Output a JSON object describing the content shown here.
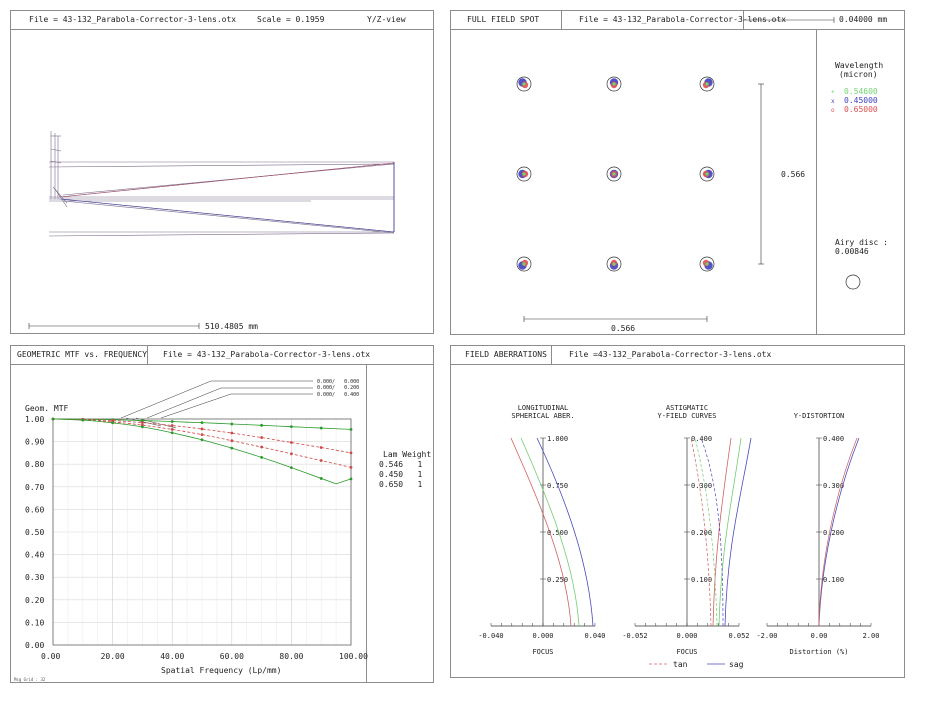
{
  "layout_panel": {
    "file": "File = 43-132_Parabola-Corrector-3-lens.otx",
    "scale": "Scale = 0.1959",
    "view": "Y/Z-view",
    "scalebar": "510.4805 mm"
  },
  "spot_panel": {
    "title": "FULL FIELD SPOT",
    "file": "File = 43-132_Parabola-Corrector-3-lens.otx",
    "scale": "0.04000 mm",
    "wavelength_title": "Wavelength",
    "wavelength_unit": "(micron)",
    "wavelengths": [
      {
        "value": "0.54600",
        "color": "#6fd66f"
      },
      {
        "value": "0.45000",
        "color": "#4040c0"
      },
      {
        "value": "0.65000",
        "color": "#e05050"
      }
    ],
    "field_size_v": "0.566",
    "field_size_h": "0.566",
    "airy_label": "Airy disc :",
    "airy_value": "0.00846"
  },
  "mtf_panel": {
    "title": "GEOMETRIC MTF vs. FREQUENCY",
    "file": "File = 43-132_Parabola-Corrector-3-lens.otx",
    "legend_header": "Lam Weight",
    "legend_rows": [
      "0.546   1",
      "0.450   1",
      "0.650   1"
    ],
    "field_labels": [
      "0.000/   0.000",
      "0.000/   0.200",
      "0.000/   0.400"
    ],
    "footer": "Msg Grid : 32",
    "colors": {
      "green": "#2a9a2a",
      "red": "#d04848"
    }
  },
  "aberr_panel": {
    "title": "FIELD ABERRATIONS",
    "file": "File =43-132_Parabola-Corrector-3-lens.otx",
    "legend_tan": "tan",
    "legend_sag": "sag",
    "plots": [
      {
        "title1": "LONGITUDINAL",
        "title2": "SPHERICAL ABER.",
        "ticks": [
          "1.000",
          "0.750",
          "0.500",
          "0.250"
        ],
        "xticks": [
          "-0.040",
          "0.000",
          "0.040"
        ],
        "xlabel": "FOCUS"
      },
      {
        "title1": "ASTIGMATIC",
        "title2": "Y-FIELD CURVES",
        "ticks": [
          "0.400",
          "0.300",
          "0.200",
          "0.100"
        ],
        "xticks": [
          "-0.052",
          "0.000",
          "0.052"
        ],
        "xlabel": "FOCUS"
      },
      {
        "title1": "",
        "title2": "Y-DISTORTION",
        "ticks": [
          "0.400",
          "0.300",
          "0.200",
          "0.100"
        ],
        "xticks": [
          "-2.00",
          "0.00",
          "2.00"
        ],
        "xlabel": "Distortion (%)"
      }
    ]
  },
  "chart_data": {
    "type": "line",
    "title": "GEOMETRIC MTF vs. FREQUENCY",
    "xlabel": "Spatial Frequency (Lp/mm)",
    "ylabel": "Geom. MTF",
    "xlim": [
      0,
      100
    ],
    "ylim": [
      0,
      1
    ],
    "xticks": [
      "0.00",
      "20.00",
      "40.00",
      "60.00",
      "80.00",
      "100.00"
    ],
    "yticks": [
      "0.00",
      "0.10",
      "0.20",
      "0.30",
      "0.40",
      "0.50",
      "0.60",
      "0.70",
      "0.80",
      "0.90",
      "1.00"
    ],
    "x": [
      0,
      5,
      10,
      15,
      20,
      25,
      30,
      35,
      40,
      45,
      50,
      55,
      60,
      65,
      70,
      75,
      80,
      85,
      90,
      95,
      100
    ],
    "series": [
      {
        "color": "green",
        "dash": false,
        "values": [
          1.0,
          1.0,
          0.999,
          0.998,
          0.997,
          0.995,
          0.993,
          0.991,
          0.989,
          0.986,
          0.984,
          0.981,
          0.978,
          0.975,
          0.972,
          0.969,
          0.966,
          0.963,
          0.96,
          0.957,
          0.954
        ]
      },
      {
        "color": "red",
        "dash": true,
        "values": [
          1.0,
          0.999,
          0.998,
          0.996,
          0.993,
          0.989,
          0.984,
          0.978,
          0.971,
          0.964,
          0.956,
          0.947,
          0.938,
          0.928,
          0.918,
          0.907,
          0.896,
          0.885,
          0.874,
          0.862,
          0.85
        ]
      },
      {
        "color": "red",
        "dash": true,
        "values": [
          1.0,
          0.998,
          0.996,
          0.992,
          0.987,
          0.981,
          0.973,
          0.964,
          0.954,
          0.943,
          0.931,
          0.918,
          0.904,
          0.89,
          0.876,
          0.861,
          0.846,
          0.831,
          0.816,
          0.801,
          0.786
        ]
      },
      {
        "color": "green",
        "dash": false,
        "values": [
          1.0,
          0.998,
          0.995,
          0.99,
          0.983,
          0.975,
          0.965,
          0.953,
          0.939,
          0.924,
          0.908,
          0.89,
          0.871,
          0.851,
          0.83,
          0.808,
          0.785,
          0.761,
          0.737,
          0.713,
          0.735
        ]
      }
    ],
    "grid": true
  }
}
